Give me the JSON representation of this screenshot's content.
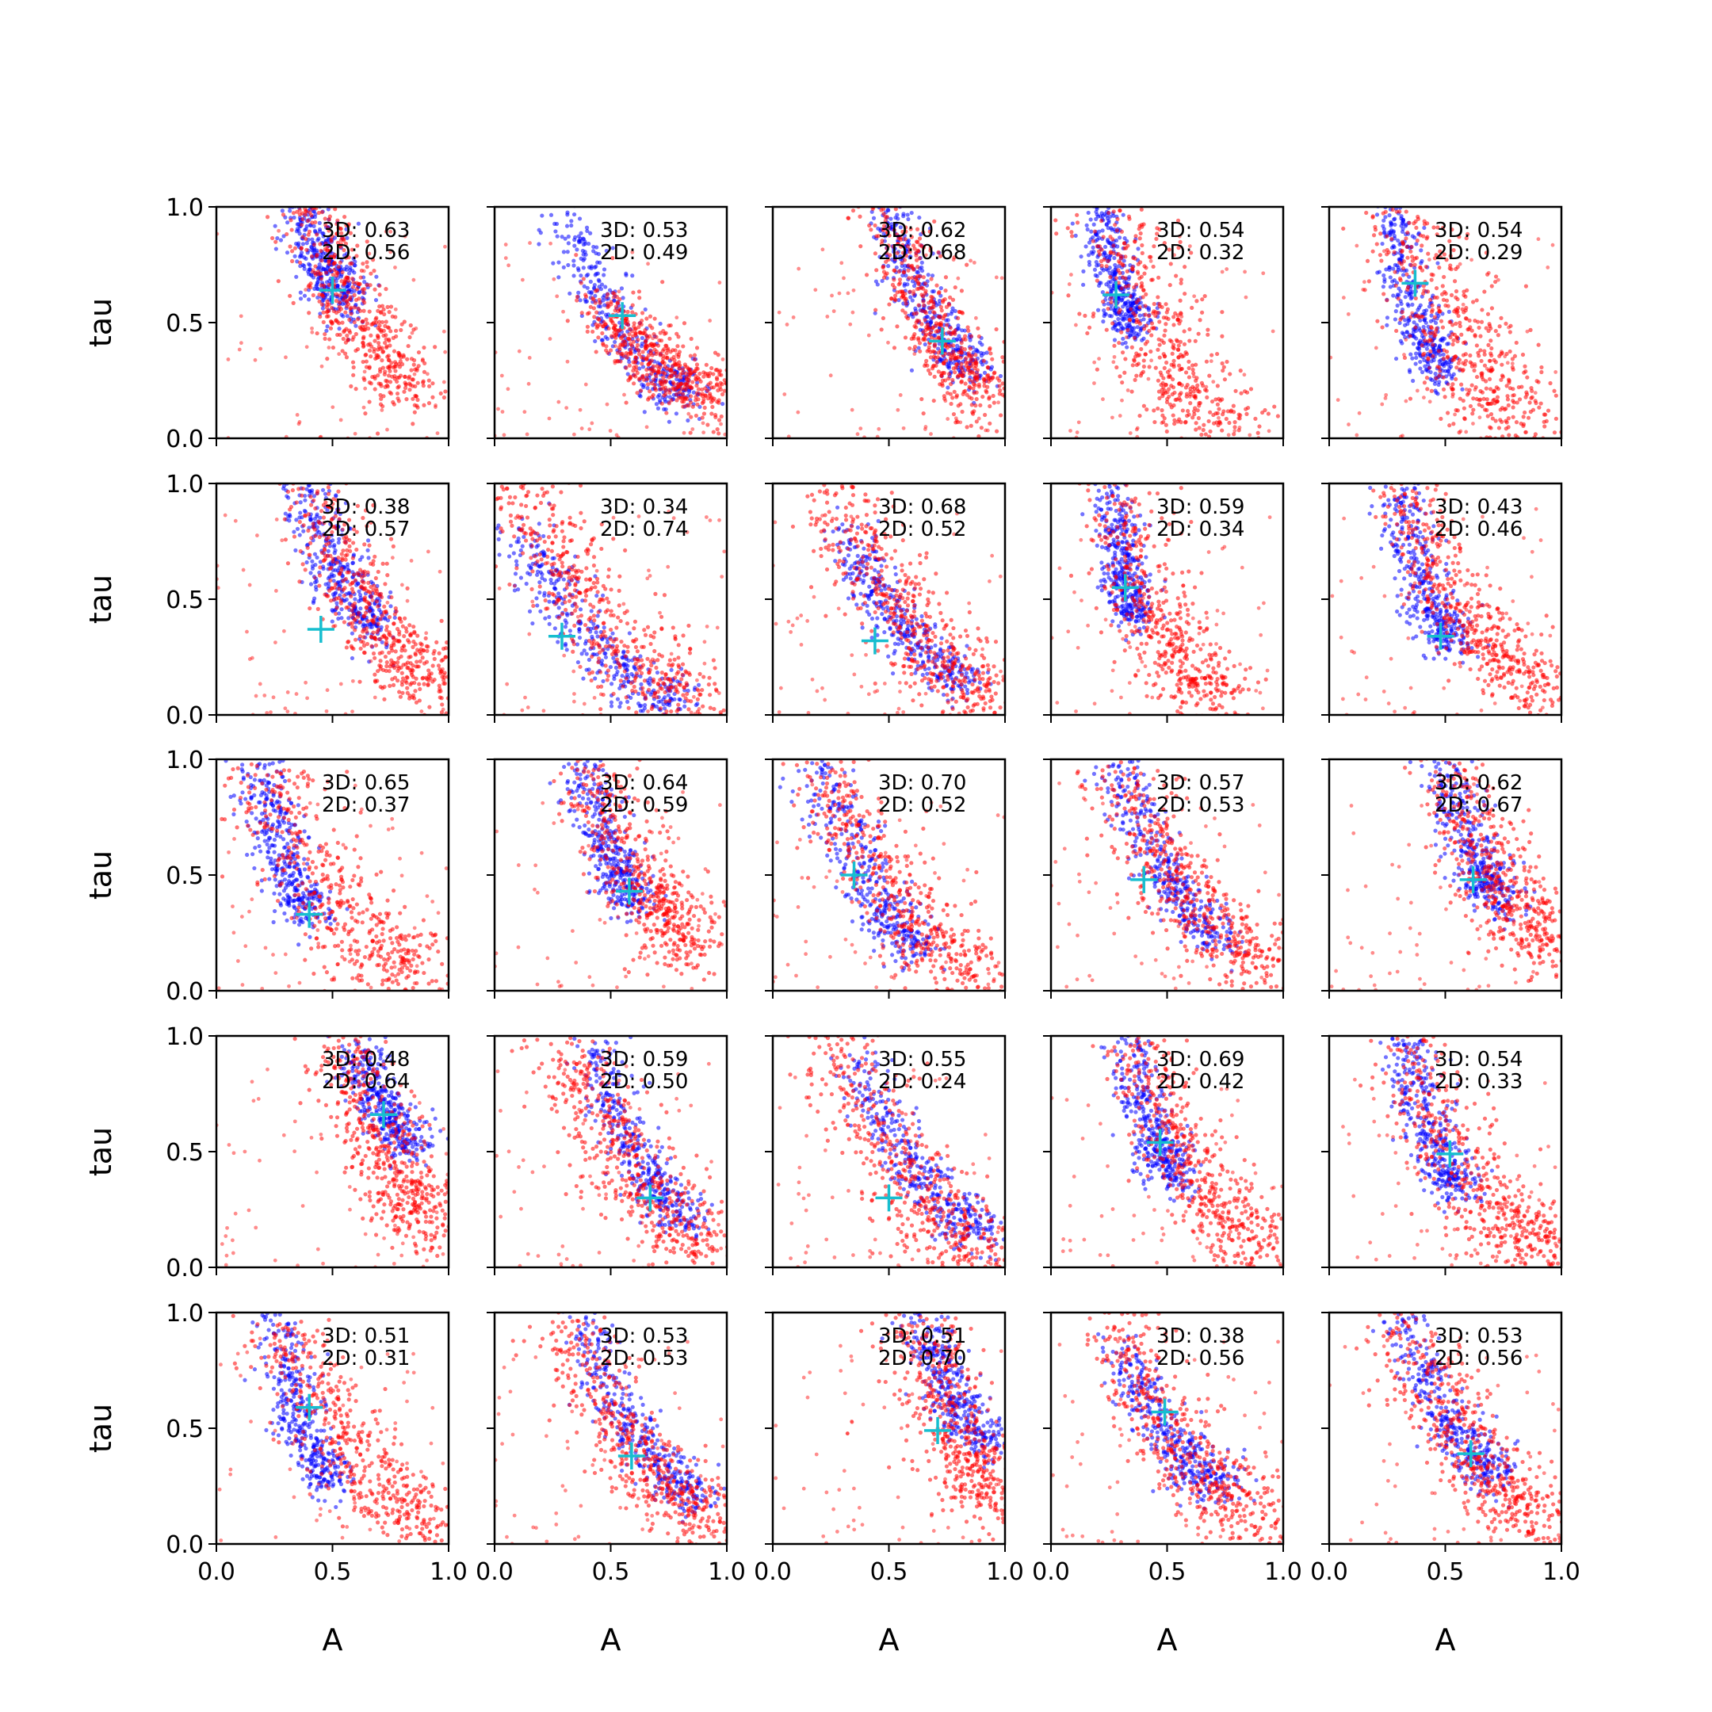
{
  "chart_data": {
    "type": "scatter",
    "layout": "5x5 grid of subplots",
    "xlabel": "A",
    "ylabel": "tau",
    "xlim": [
      0,
      1
    ],
    "ylim": [
      0,
      1
    ],
    "xticks": [
      "0.0",
      "0.5",
      "1.0"
    ],
    "yticks": [
      "0.0",
      "0.5",
      "1.0"
    ],
    "grid": false,
    "series_colors": {
      "blue": "#0000ff",
      "red": "#ff0000",
      "marker": "#17becf"
    },
    "annotation_labels": {
      "three_d": "3D:",
      "two_d": "2D:"
    },
    "panels": [
      {
        "row": 0,
        "col": 0,
        "annot_3d": "0.63",
        "annot_2d": "0.56",
        "marker": {
          "A": 0.5,
          "tau": 0.64
        },
        "blue_band": {
          "A0": 0.37,
          "A1": 0.58,
          "t0": 1.0,
          "t1": 0.6,
          "spread": 0.08
        },
        "red_band": {
          "A0": 0.4,
          "A1": 0.85,
          "t0": 1.0,
          "t1": 0.25,
          "spread": 0.1
        }
      },
      {
        "row": 0,
        "col": 1,
        "annot_3d": "0.53",
        "annot_2d": "0.49",
        "marker": {
          "A": 0.55,
          "tau": 0.53
        },
        "blue_band": {
          "A0": 0.3,
          "A1": 0.85,
          "t0": 0.95,
          "t1": 0.2,
          "spread": 0.07
        },
        "red_band": {
          "A0": 0.45,
          "A1": 0.95,
          "t0": 0.6,
          "t1": 0.2,
          "spread": 0.09
        }
      },
      {
        "row": 0,
        "col": 2,
        "annot_3d": "0.62",
        "annot_2d": "0.68",
        "marker": {
          "A": 0.73,
          "tau": 0.42
        },
        "blue_band": {
          "A0": 0.48,
          "A1": 0.88,
          "t0": 1.0,
          "t1": 0.3,
          "spread": 0.07
        },
        "red_band": {
          "A0": 0.48,
          "A1": 0.95,
          "t0": 1.0,
          "t1": 0.2,
          "spread": 0.1
        }
      },
      {
        "row": 0,
        "col": 3,
        "annot_3d": "0.54",
        "annot_2d": "0.32",
        "marker": {
          "A": 0.28,
          "tau": 0.62
        },
        "blue_band": {
          "A0": 0.22,
          "A1": 0.36,
          "t0": 1.0,
          "t1": 0.5,
          "spread": 0.06
        },
        "red_band": {
          "A0": 0.25,
          "A1": 0.75,
          "t0": 1.0,
          "t1": 0.05,
          "spread": 0.14
        }
      },
      {
        "row": 0,
        "col": 4,
        "annot_3d": "0.54",
        "annot_2d": "0.29",
        "marker": {
          "A": 0.37,
          "tau": 0.67
        },
        "blue_band": {
          "A0": 0.28,
          "A1": 0.48,
          "t0": 1.0,
          "t1": 0.3,
          "spread": 0.07
        },
        "red_band": {
          "A0": 0.3,
          "A1": 0.85,
          "t0": 1.0,
          "t1": 0.1,
          "spread": 0.14
        }
      },
      {
        "row": 1,
        "col": 0,
        "annot_3d": "0.38",
        "annot_2d": "0.57",
        "marker": {
          "A": 0.45,
          "tau": 0.37
        },
        "blue_band": {
          "A0": 0.37,
          "A1": 0.7,
          "t0": 1.0,
          "t1": 0.4,
          "spread": 0.08
        },
        "red_band": {
          "A0": 0.4,
          "A1": 0.95,
          "t0": 1.0,
          "t1": 0.15,
          "spread": 0.1
        }
      },
      {
        "row": 1,
        "col": 1,
        "annot_3d": "0.34",
        "annot_2d": "0.74",
        "marker": {
          "A": 0.29,
          "tau": 0.34
        },
        "blue_band": {
          "A0": 0.1,
          "A1": 0.8,
          "t0": 0.8,
          "t1": 0.05,
          "spread": 0.08
        },
        "red_band": {
          "A0": 0.1,
          "A1": 0.9,
          "t0": 1.0,
          "t1": 0.05,
          "spread": 0.12
        }
      },
      {
        "row": 1,
        "col": 2,
        "annot_3d": "0.68",
        "annot_2d": "0.52",
        "marker": {
          "A": 0.44,
          "tau": 0.32
        },
        "blue_band": {
          "A0": 0.3,
          "A1": 0.85,
          "t0": 0.8,
          "t1": 0.15,
          "spread": 0.07
        },
        "red_band": {
          "A0": 0.25,
          "A1": 0.95,
          "t0": 1.0,
          "t1": 0.1,
          "spread": 0.12
        }
      },
      {
        "row": 1,
        "col": 3,
        "annot_3d": "0.59",
        "annot_2d": "0.34",
        "marker": {
          "A": 0.32,
          "tau": 0.55
        },
        "blue_band": {
          "A0": 0.25,
          "A1": 0.38,
          "t0": 1.0,
          "t1": 0.45,
          "spread": 0.06
        },
        "red_band": {
          "A0": 0.25,
          "A1": 0.7,
          "t0": 1.0,
          "t1": 0.1,
          "spread": 0.13
        }
      },
      {
        "row": 1,
        "col": 4,
        "annot_3d": "0.43",
        "annot_2d": "0.46",
        "marker": {
          "A": 0.48,
          "tau": 0.34
        },
        "blue_band": {
          "A0": 0.3,
          "A1": 0.55,
          "t0": 1.0,
          "t1": 0.3,
          "spread": 0.07
        },
        "red_band": {
          "A0": 0.3,
          "A1": 0.95,
          "t0": 1.0,
          "t1": 0.12,
          "spread": 0.1
        }
      },
      {
        "row": 2,
        "col": 0,
        "annot_3d": "0.65",
        "annot_2d": "0.37",
        "marker": {
          "A": 0.4,
          "tau": 0.33
        },
        "blue_band": {
          "A0": 0.18,
          "A1": 0.42,
          "t0": 1.0,
          "t1": 0.35,
          "spread": 0.07
        },
        "red_band": {
          "A0": 0.18,
          "A1": 0.9,
          "t0": 1.0,
          "t1": 0.05,
          "spread": 0.14
        }
      },
      {
        "row": 2,
        "col": 1,
        "annot_3d": "0.64",
        "annot_2d": "0.59",
        "marker": {
          "A": 0.58,
          "tau": 0.43
        },
        "blue_band": {
          "A0": 0.37,
          "A1": 0.62,
          "t0": 1.0,
          "t1": 0.4,
          "spread": 0.07
        },
        "red_band": {
          "A0": 0.4,
          "A1": 0.9,
          "t0": 1.0,
          "t1": 0.2,
          "spread": 0.11
        }
      },
      {
        "row": 2,
        "col": 2,
        "annot_3d": "0.70",
        "annot_2d": "0.52",
        "marker": {
          "A": 0.35,
          "tau": 0.5
        },
        "blue_band": {
          "A0": 0.2,
          "A1": 0.65,
          "t0": 1.0,
          "t1": 0.2,
          "spread": 0.08
        },
        "red_band": {
          "A0": 0.2,
          "A1": 0.95,
          "t0": 1.0,
          "t1": 0.05,
          "spread": 0.12
        }
      },
      {
        "row": 2,
        "col": 3,
        "annot_3d": "0.57",
        "annot_2d": "0.53",
        "marker": {
          "A": 0.4,
          "tau": 0.48
        },
        "blue_band": {
          "A0": 0.28,
          "A1": 0.75,
          "t0": 1.0,
          "t1": 0.25,
          "spread": 0.07
        },
        "red_band": {
          "A0": 0.25,
          "A1": 0.95,
          "t0": 1.0,
          "t1": 0.1,
          "spread": 0.12
        }
      },
      {
        "row": 2,
        "col": 4,
        "annot_3d": "0.62",
        "annot_2d": "0.67",
        "marker": {
          "A": 0.62,
          "tau": 0.48
        },
        "blue_band": {
          "A0": 0.5,
          "A1": 0.75,
          "t0": 1.0,
          "t1": 0.4,
          "spread": 0.07
        },
        "red_band": {
          "A0": 0.5,
          "A1": 0.98,
          "t0": 1.0,
          "t1": 0.2,
          "spread": 0.12
        }
      },
      {
        "row": 3,
        "col": 0,
        "annot_3d": "0.48",
        "annot_2d": "0.64",
        "marker": {
          "A": 0.72,
          "tau": 0.66
        },
        "blue_band": {
          "A0": 0.6,
          "A1": 0.85,
          "t0": 0.95,
          "t1": 0.55,
          "spread": 0.07
        },
        "red_band": {
          "A0": 0.55,
          "A1": 0.95,
          "t0": 1.0,
          "t1": 0.2,
          "spread": 0.12
        }
      },
      {
        "row": 3,
        "col": 1,
        "annot_3d": "0.59",
        "annot_2d": "0.50",
        "marker": {
          "A": 0.67,
          "tau": 0.3
        },
        "blue_band": {
          "A0": 0.4,
          "A1": 0.85,
          "t0": 1.0,
          "t1": 0.22,
          "spread": 0.07
        },
        "red_band": {
          "A0": 0.3,
          "A1": 0.95,
          "t0": 1.0,
          "t1": 0.1,
          "spread": 0.12
        }
      },
      {
        "row": 3,
        "col": 2,
        "annot_3d": "0.55",
        "annot_2d": "0.24",
        "marker": {
          "A": 0.5,
          "tau": 0.3
        },
        "blue_band": {
          "A0": 0.35,
          "A1": 0.95,
          "t0": 0.9,
          "t1": 0.15,
          "spread": 0.07
        },
        "red_band": {
          "A0": 0.25,
          "A1": 0.95,
          "t0": 1.0,
          "t1": 0.05,
          "spread": 0.13
        }
      },
      {
        "row": 3,
        "col": 3,
        "annot_3d": "0.69",
        "annot_2d": "0.42",
        "marker": {
          "A": 0.47,
          "tau": 0.54
        },
        "blue_band": {
          "A0": 0.32,
          "A1": 0.55,
          "t0": 1.0,
          "t1": 0.4,
          "spread": 0.07
        },
        "red_band": {
          "A0": 0.35,
          "A1": 0.92,
          "t0": 1.0,
          "t1": 0.1,
          "spread": 0.11
        }
      },
      {
        "row": 3,
        "col": 4,
        "annot_3d": "0.54",
        "annot_2d": "0.33",
        "marker": {
          "A": 0.52,
          "tau": 0.49
        },
        "blue_band": {
          "A0": 0.32,
          "A1": 0.58,
          "t0": 1.0,
          "t1": 0.35,
          "spread": 0.07
        },
        "red_band": {
          "A0": 0.3,
          "A1": 0.95,
          "t0": 1.0,
          "t1": 0.08,
          "spread": 0.12
        }
      },
      {
        "row": 4,
        "col": 0,
        "annot_3d": "0.51",
        "annot_2d": "0.31",
        "marker": {
          "A": 0.4,
          "tau": 0.59
        },
        "blue_band": {
          "A0": 0.25,
          "A1": 0.5,
          "t0": 1.0,
          "t1": 0.3,
          "spread": 0.07
        },
        "red_band": {
          "A0": 0.25,
          "A1": 0.95,
          "t0": 1.0,
          "t1": 0.1,
          "spread": 0.12
        }
      },
      {
        "row": 4,
        "col": 1,
        "annot_3d": "0.53",
        "annot_2d": "0.53",
        "marker": {
          "A": 0.59,
          "tau": 0.38
        },
        "blue_band": {
          "A0": 0.35,
          "A1": 0.9,
          "t0": 1.0,
          "t1": 0.2,
          "spread": 0.07
        },
        "red_band": {
          "A0": 0.3,
          "A1": 0.95,
          "t0": 1.0,
          "t1": 0.1,
          "spread": 0.11
        }
      },
      {
        "row": 4,
        "col": 2,
        "annot_3d": "0.51",
        "annot_2d": "0.70",
        "marker": {
          "A": 0.71,
          "tau": 0.49
        },
        "blue_band": {
          "A0": 0.62,
          "A1": 0.95,
          "t0": 1.0,
          "t1": 0.45,
          "spread": 0.07
        },
        "red_band": {
          "A0": 0.62,
          "A1": 0.98,
          "t0": 1.0,
          "t1": 0.2,
          "spread": 0.12
        }
      },
      {
        "row": 4,
        "col": 3,
        "annot_3d": "0.38",
        "annot_2d": "0.56",
        "marker": {
          "A": 0.49,
          "tau": 0.57
        },
        "blue_band": {
          "A0": 0.3,
          "A1": 0.75,
          "t0": 0.85,
          "t1": 0.25,
          "spread": 0.07
        },
        "red_band": {
          "A0": 0.25,
          "A1": 0.95,
          "t0": 1.0,
          "t1": 0.1,
          "spread": 0.12
        }
      },
      {
        "row": 4,
        "col": 4,
        "annot_3d": "0.53",
        "annot_2d": "0.56",
        "marker": {
          "A": 0.61,
          "tau": 0.39
        },
        "blue_band": {
          "A0": 0.3,
          "A1": 0.75,
          "t0": 1.0,
          "t1": 0.3,
          "spread": 0.07
        },
        "red_band": {
          "A0": 0.3,
          "A1": 0.95,
          "t0": 1.0,
          "t1": 0.1,
          "spread": 0.11
        }
      }
    ]
  }
}
